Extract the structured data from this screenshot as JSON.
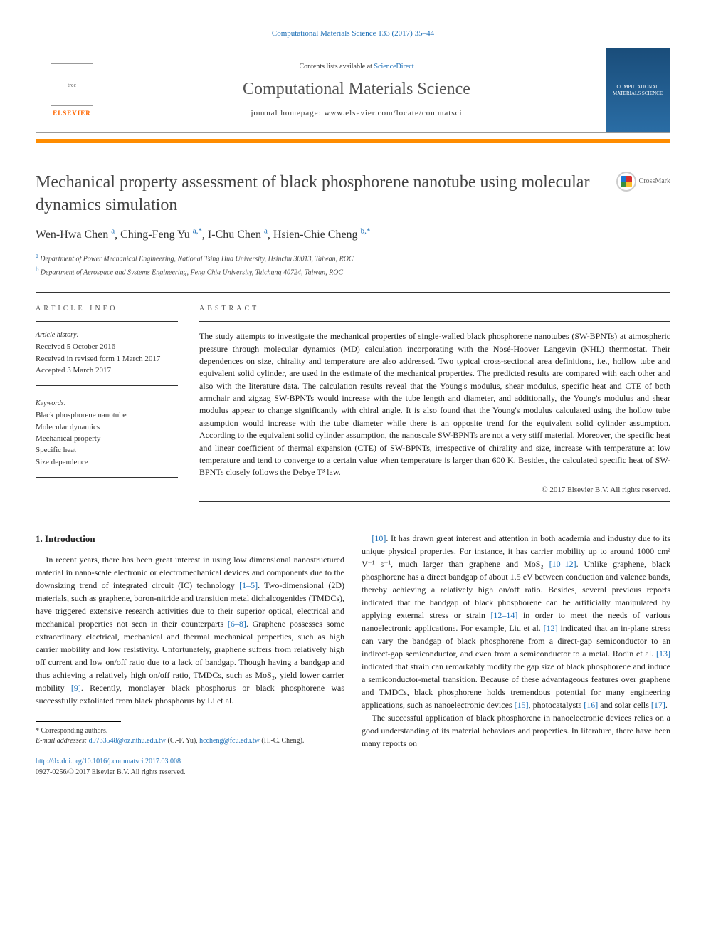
{
  "header": {
    "citation": "Computational Materials Science 133 (2017) 35–44",
    "contents_prefix": "Contents lists available at ",
    "contents_link": "ScienceDirect",
    "journal_title": "Computational Materials Science",
    "homepage_label": "journal homepage: www.elsevier.com/locate/commatsci",
    "publisher": "ELSEVIER",
    "cover_text": "COMPUTATIONAL MATERIALS SCIENCE"
  },
  "article": {
    "title": "Mechanical property assessment of black phosphorene nanotube using molecular dynamics simulation",
    "crossmark": "CrossMark",
    "authors_html": "Wen-Hwa Chen|a|, Ching-Feng Yu|a,*|, I-Chu Chen|a|, Hsien-Chie Cheng|b,*|",
    "authors": [
      {
        "name": "Wen-Hwa Chen",
        "sup": "a"
      },
      {
        "name": "Ching-Feng Yu",
        "sup": "a,*"
      },
      {
        "name": "I-Chu Chen",
        "sup": "a"
      },
      {
        "name": "Hsien-Chie Cheng",
        "sup": "b,*"
      }
    ],
    "affiliations": [
      {
        "sup": "a",
        "text": "Department of Power Mechanical Engineering, National Tsing Hua University, Hsinchu 30013, Taiwan, ROC"
      },
      {
        "sup": "b",
        "text": "Department of Aerospace and Systems Engineering, Feng Chia University, Taichung 40724, Taiwan, ROC"
      }
    ]
  },
  "info": {
    "label": "ARTICLE INFO",
    "history_label": "Article history:",
    "history": [
      "Received 5 October 2016",
      "Received in revised form 1 March 2017",
      "Accepted 3 March 2017"
    ],
    "keywords_label": "Keywords:",
    "keywords": [
      "Black phosphorene nanotube",
      "Molecular dynamics",
      "Mechanical property",
      "Specific heat",
      "Size dependence"
    ]
  },
  "abstract": {
    "label": "ABSTRACT",
    "text": "The study attempts to investigate the mechanical properties of single-walled black phosphorene nanotubes (SW-BPNTs) at atmospheric pressure through molecular dynamics (MD) calculation incorporating with the Nosé-Hoover Langevin (NHL) thermostat. Their dependences on size, chirality and temperature are also addressed. Two typical cross-sectional area definitions, i.e., hollow tube and equivalent solid cylinder, are used in the estimate of the mechanical properties. The predicted results are compared with each other and also with the literature data. The calculation results reveal that the Young's modulus, shear modulus, specific heat and CTE of both armchair and zigzag SW-BPNTs would increase with the tube length and diameter, and additionally, the Young's modulus and shear modulus appear to change significantly with chiral angle. It is also found that the Young's modulus calculated using the hollow tube assumption would increase with the tube diameter while there is an opposite trend for the equivalent solid cylinder assumption. According to the equivalent solid cylinder assumption, the nanoscale SW-BPNTs are not a very stiff material. Moreover, the specific heat and linear coefficient of thermal expansion (CTE) of SW-BPNTs, irrespective of chirality and size, increase with temperature at low temperature and tend to converge to a certain value when temperature is larger than 600 K. Besides, the calculated specific heat of SW-BPNTs closely follows the Debye T³ law.",
    "copyright": "© 2017 Elsevier B.V. All rights reserved."
  },
  "body": {
    "heading": "1. Introduction",
    "left_paragraphs": [
      "In recent years, there has been great interest in using low dimensional nanostructured material in nano-scale electronic or electromechanical devices and components due to the downsizing trend of integrated circuit (IC) technology [1–5]. Two-dimensional (2D) materials, such as graphene, boron-nitride and transition metal dichalcogenides (TMDCs), have triggered extensive research activities due to their superior optical, electrical and mechanical properties not seen in their counterparts [6–8]. Graphene possesses some extraordinary electrical, mechanical and thermal mechanical properties, such as high carrier mobility and low resistivity. Unfortunately, graphene suffers from relatively high off current and low on/off ratio due to a lack of bandgap. Though having a bandgap and thus achieving a relatively high on/off ratio, TMDCs, such as MoS₂, yield lower carrier mobility [9]. Recently, monolayer black phosphorus or black phosphorene was successfully exfoliated from black phosphorus by Li et al."
    ],
    "right_paragraphs": [
      "[10]. It has drawn great interest and attention in both academia and industry due to its unique physical properties. For instance, it has carrier mobility up to around 1000 cm² V⁻¹ s⁻¹, much larger than graphene and MoS₂ [10–12]. Unlike graphene, black phosphorene has a direct bandgap of about 1.5 eV between conduction and valence bands, thereby achieving a relatively high on/off ratio. Besides, several previous reports indicated that the bandgap of black phosphorene can be artificially manipulated by applying external stress or strain [12–14] in order to meet the needs of various nanoelectronic applications. For example, Liu et al. [12] indicated that an in-plane stress can vary the bandgap of black phosphorene from a direct-gap semiconductor to an indirect-gap semiconductor, and even from a semiconductor to a metal. Rodin et al. [13] indicated that strain can remarkably modify the gap size of black phosphorene and induce a semiconductor-metal transition. Because of these advantageous features over graphene and TMDCs, black phosphorene holds tremendous potential for many engineering applications, such as nanoelectronic devices [15], photocatalysts [16] and solar cells [17].",
      "The successful application of black phosphorene in nanoelectronic devices relies on a good understanding of its material behaviors and properties. In literature, there have been many reports on"
    ]
  },
  "footer": {
    "corresponding": "* Corresponding authors.",
    "email_label": "E-mail addresses: ",
    "emails": [
      {
        "addr": "d9733548@oz.nthu.edu.tw",
        "who": " (C.-F. Yu), "
      },
      {
        "addr": "hccheng@fcu.edu.tw",
        "who": " (H.-C. Cheng)."
      }
    ],
    "doi": "http://dx.doi.org/10.1016/j.commatsci.2017.03.008",
    "issn_line": "0927-0256/© 2017 Elsevier B.V. All rights reserved."
  },
  "colors": {
    "link": "#1a6db5",
    "accent": "#ff8c00",
    "elsevier": "#ff6600",
    "text": "#222222",
    "rule": "#333333"
  }
}
